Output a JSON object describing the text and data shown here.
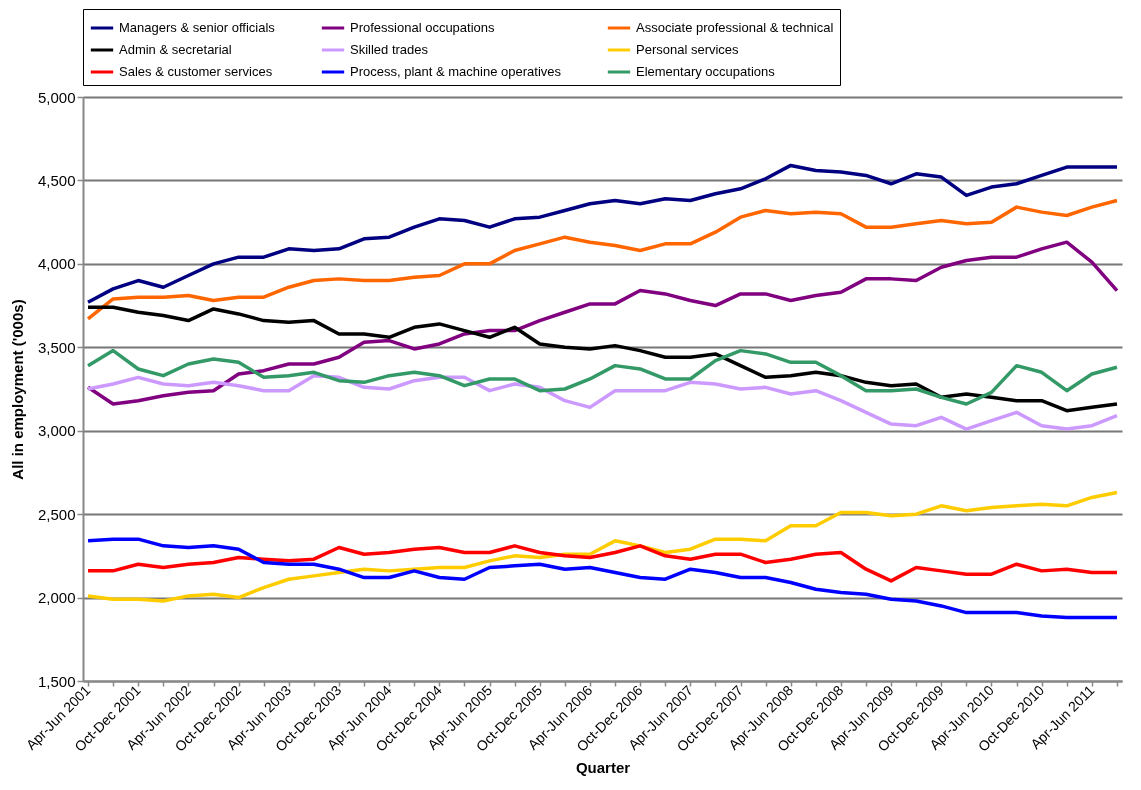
{
  "chart_data": {
    "type": "line",
    "xlabel": "Quarter",
    "ylabel": "All in employment ('000s)",
    "categories": [
      "Apr-Jun 2001",
      null,
      "Oct-Dec 2001",
      null,
      "Apr-Jun 2002",
      null,
      "Oct-Dec 2002",
      null,
      "Apr-Jun 2003",
      null,
      "Oct-Dec 2003",
      null,
      "Apr-Jun 2004",
      null,
      "Oct-Dec 2004",
      null,
      "Apr-Jun 2005",
      null,
      "Oct-Dec 2005",
      null,
      "Apr-Jun 2006",
      null,
      "Oct-Dec 2006",
      null,
      "Apr-Jun 2007",
      null,
      "Oct-Dec 2007",
      null,
      "Apr-Jun 2008",
      null,
      "Oct-Dec 2008",
      null,
      "Apr-Jun 2009",
      null,
      "Oct-Dec 2009",
      null,
      "Apr-Jun 2010",
      null,
      "Oct-Dec 2010",
      null,
      "Apr-Jun 2011",
      null
    ],
    "ylim": [
      1500,
      5000
    ],
    "yticks": [
      {
        "value": 1500,
        "label": "1,500"
      },
      {
        "value": 2000,
        "label": "2,000"
      },
      {
        "value": 2500,
        "label": "2,500"
      },
      {
        "value": 3000,
        "label": "3,000"
      },
      {
        "value": 3500,
        "label": "3,500"
      },
      {
        "value": 4000,
        "label": "4,000"
      },
      {
        "value": 4500,
        "label": "4,500"
      },
      {
        "value": 5000,
        "label": "5,000"
      }
    ],
    "grid": "y",
    "legend": "top",
    "line_style": "solid",
    "series": [
      {
        "name": "Managers & senior officials",
        "color": "#000080",
        "values": [
          3770,
          3850,
          3900,
          3860,
          3930,
          4000,
          4040,
          4040,
          4090,
          4080,
          4090,
          4150,
          4160,
          4220,
          4270,
          4260,
          4220,
          4270,
          4280,
          4320,
          4360,
          4380,
          4360,
          4390,
          4380,
          4420,
          4450,
          4510,
          4590,
          4560,
          4550,
          4530,
          4480,
          4540,
          4520,
          4410,
          4460,
          4480,
          4530,
          4580,
          4580,
          4580
        ]
      },
      {
        "name": "Professional occupations",
        "color": "#800080",
        "values": [
          3260,
          3160,
          3180,
          3210,
          3230,
          3240,
          3340,
          3360,
          3400,
          3400,
          3440,
          3530,
          3540,
          3490,
          3520,
          3580,
          3600,
          3600,
          3660,
          3710,
          3760,
          3760,
          3840,
          3820,
          3780,
          3750,
          3820,
          3820,
          3780,
          3810,
          3830,
          3910,
          3910,
          3900,
          3980,
          4020,
          4040,
          4040,
          4090,
          4130,
          4010,
          3840
        ]
      },
      {
        "name": "Associate professional & technical",
        "color": "#ff6600",
        "values": [
          3670,
          3790,
          3800,
          3800,
          3810,
          3780,
          3800,
          3800,
          3860,
          3900,
          3910,
          3900,
          3900,
          3920,
          3930,
          4000,
          4000,
          4080,
          4120,
          4160,
          4130,
          4110,
          4080,
          4120,
          4120,
          4190,
          4280,
          4320,
          4300,
          4310,
          4300,
          4220,
          4220,
          4240,
          4260,
          4240,
          4250,
          4340,
          4310,
          4290,
          4340,
          4380
        ]
      },
      {
        "name": "Admin & secretarial",
        "color": "#000000",
        "values": [
          3740,
          3740,
          3710,
          3690,
          3660,
          3730,
          3700,
          3660,
          3650,
          3660,
          3580,
          3580,
          3560,
          3620,
          3640,
          3600,
          3560,
          3620,
          3520,
          3500,
          3490,
          3510,
          3480,
          3440,
          3440,
          3460,
          3390,
          3320,
          3330,
          3350,
          3330,
          3290,
          3270,
          3280,
          3200,
          3220,
          3200,
          3180,
          3180,
          3120,
          3140,
          3160
        ]
      },
      {
        "name": "Skilled trades",
        "color": "#cc99ff",
        "values": [
          3250,
          3280,
          3320,
          3280,
          3270,
          3290,
          3270,
          3240,
          3240,
          3330,
          3320,
          3260,
          3250,
          3300,
          3320,
          3320,
          3240,
          3280,
          3260,
          3180,
          3140,
          3240,
          3240,
          3240,
          3290,
          3280,
          3250,
          3260,
          3220,
          3240,
          3180,
          3110,
          3040,
          3030,
          3080,
          3010,
          3060,
          3110,
          3030,
          3010,
          3030,
          3090
        ]
      },
      {
        "name": "Personal services",
        "color": "#ffcc00",
        "values": [
          2010,
          1990,
          1990,
          1980,
          2010,
          2020,
          2000,
          2060,
          2110,
          2130,
          2150,
          2170,
          2160,
          2170,
          2180,
          2180,
          2220,
          2250,
          2240,
          2260,
          2260,
          2340,
          2310,
          2270,
          2290,
          2350,
          2350,
          2340,
          2430,
          2430,
          2510,
          2510,
          2490,
          2500,
          2550,
          2520,
          2540,
          2550,
          2560,
          2550,
          2600,
          2630
        ]
      },
      {
        "name": "Sales & customer services",
        "color": "#ff0000",
        "values": [
          2160,
          2160,
          2200,
          2180,
          2200,
          2210,
          2240,
          2230,
          2220,
          2230,
          2300,
          2260,
          2270,
          2290,
          2300,
          2270,
          2270,
          2310,
          2270,
          2250,
          2240,
          2270,
          2310,
          2250,
          2230,
          2260,
          2260,
          2210,
          2230,
          2260,
          2270,
          2170,
          2100,
          2180,
          2160,
          2140,
          2140,
          2200,
          2160,
          2170,
          2150,
          2150
        ]
      },
      {
        "name": "Process, plant & machine operatives",
        "color": "#0000ff",
        "values": [
          2340,
          2350,
          2350,
          2310,
          2300,
          2310,
          2290,
          2210,
          2200,
          2200,
          2170,
          2120,
          2120,
          2160,
          2120,
          2110,
          2180,
          2190,
          2200,
          2170,
          2180,
          2150,
          2120,
          2110,
          2170,
          2150,
          2120,
          2120,
          2090,
          2050,
          2030,
          2020,
          1990,
          1980,
          1950,
          1910,
          1910,
          1910,
          1890,
          1880,
          1880,
          1880
        ]
      },
      {
        "name": "Elementary occupations",
        "color": "#339966",
        "values": [
          3390,
          3480,
          3370,
          3330,
          3400,
          3430,
          3410,
          3320,
          3330,
          3350,
          3300,
          3290,
          3330,
          3350,
          3330,
          3270,
          3310,
          3310,
          3240,
          3250,
          3310,
          3390,
          3370,
          3310,
          3310,
          3420,
          3480,
          3460,
          3410,
          3410,
          3330,
          3240,
          3240,
          3250,
          3200,
          3160,
          3230,
          3390,
          3350,
          3240,
          3340,
          3380
        ]
      }
    ]
  }
}
